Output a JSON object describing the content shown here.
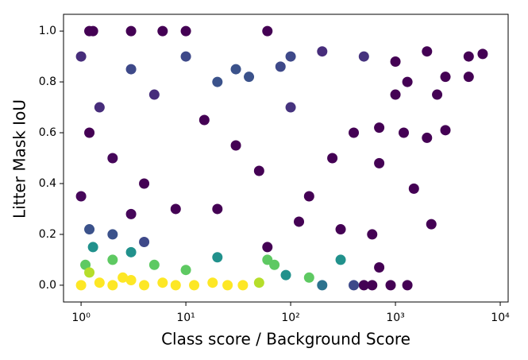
{
  "chart_data": {
    "type": "scatter",
    "xlabel": "Class score / Background Score",
    "ylabel": "Litter Mask IoU",
    "xscale": "log",
    "xlim": [
      0.68,
      11900
    ],
    "ylim": [
      -0.066,
      1.066
    ],
    "xticks": [
      {
        "value": 1,
        "label": "10⁰"
      },
      {
        "value": 10,
        "label": "10¹"
      },
      {
        "value": 100,
        "label": "10²"
      },
      {
        "value": 1000,
        "label": "10³"
      },
      {
        "value": 10000,
        "label": "10⁴"
      }
    ],
    "yticks": [
      {
        "value": 0,
        "label": "0.0"
      },
      {
        "value": 0.2,
        "label": "0.2"
      },
      {
        "value": 0.4,
        "label": "0.4"
      },
      {
        "value": 0.6,
        "label": "0.6"
      },
      {
        "value": 0.8,
        "label": "0.8"
      },
      {
        "value": 1,
        "label": "1.0"
      }
    ],
    "x": [
      1.2,
      1.3,
      3,
      6,
      10,
      60,
      1,
      3,
      10,
      30,
      100,
      200,
      500,
      1000,
      2000,
      5000,
      6800,
      3000,
      1300,
      1.2,
      2,
      4,
      8,
      15,
      30,
      50,
      100,
      150,
      250,
      400,
      700,
      1200,
      2000,
      3000,
      700,
      1500,
      2200,
      600,
      300,
      700,
      1000,
      2500,
      5000,
      1.5,
      5,
      20,
      60,
      120,
      1,
      3,
      600,
      900,
      1300,
      20,
      40,
      80,
      1.2,
      2,
      4,
      500,
      400,
      1.3,
      3,
      20,
      300,
      90,
      200,
      1.1,
      2,
      5,
      10,
      60,
      70,
      150,
      1,
      1.5,
      2,
      3,
      4,
      6,
      8,
      12,
      18,
      25,
      35,
      50,
      2.5,
      1.2
    ],
    "values": [
      1,
      1,
      1,
      1,
      1,
      1,
      0.9,
      0.85,
      0.9,
      0.85,
      0.9,
      0.92,
      0.9,
      0.88,
      0.92,
      0.9,
      0.91,
      0.82,
      0.8,
      0.6,
      0.5,
      0.4,
      0.3,
      0.65,
      0.55,
      0.45,
      0.7,
      0.35,
      0.5,
      0.6,
      0.62,
      0.6,
      0.58,
      0.61,
      0.48,
      0.38,
      0.24,
      0.2,
      0.22,
      0.07,
      0.75,
      0.75,
      0.82,
      0.7,
      0.75,
      0.3,
      0.15,
      0.25,
      0.35,
      0.28,
      0,
      0,
      0,
      0.8,
      0.82,
      0.86,
      0.22,
      0.2,
      0.17,
      0,
      0,
      0.15,
      0.13,
      0.11,
      0.1,
      0.04,
      0,
      0.08,
      0.1,
      0.08,
      0.06,
      0.1,
      0.08,
      0.03,
      0,
      0.01,
      0,
      0.02,
      0,
      0.01,
      0,
      0,
      0.01,
      0,
      0,
      0.01,
      0.03,
      0.05
    ],
    "colors": [
      "#440154",
      "#440154",
      "#440154",
      "#440154",
      "#440154",
      "#440154",
      "#472d7b",
      "#3e4989",
      "#3e4989",
      "#3b528b",
      "#3e4989",
      "#472d7b",
      "#46337e",
      "#440154",
      "#440154",
      "#440154",
      "#440154",
      "#440154",
      "#440154",
      "#440154",
      "#46075a",
      "#440154",
      "#440154",
      "#440154",
      "#440154",
      "#440154",
      "#46337e",
      "#440154",
      "#440154",
      "#440154",
      "#440154",
      "#440154",
      "#440154",
      "#440154",
      "#440154",
      "#440154",
      "#440154",
      "#440154",
      "#440154",
      "#440154",
      "#440154",
      "#440154",
      "#440154",
      "#472d7b",
      "#472d7b",
      "#440154",
      "#440154",
      "#440154",
      "#46075a",
      "#46075a",
      "#440154",
      "#440154",
      "#440154",
      "#3b528b",
      "#3b528b",
      "#3e4989",
      "#3b528b",
      "#3b528b",
      "#3e4989",
      "#440154",
      "#3e4989",
      "#21918c",
      "#21918c",
      "#21918c",
      "#21918c",
      "#21918c",
      "#2c728e",
      "#5ec962",
      "#5ec962",
      "#5ec962",
      "#5ec962",
      "#5ec962",
      "#5ec962",
      "#5ec962",
      "#fde725",
      "#fde725",
      "#fde725",
      "#fde725",
      "#fde725",
      "#fde725",
      "#fde725",
      "#fde725",
      "#fde725",
      "#fde725",
      "#fde725",
      "#b5de2b",
      "#fde725",
      "#b5de2b"
    ]
  }
}
